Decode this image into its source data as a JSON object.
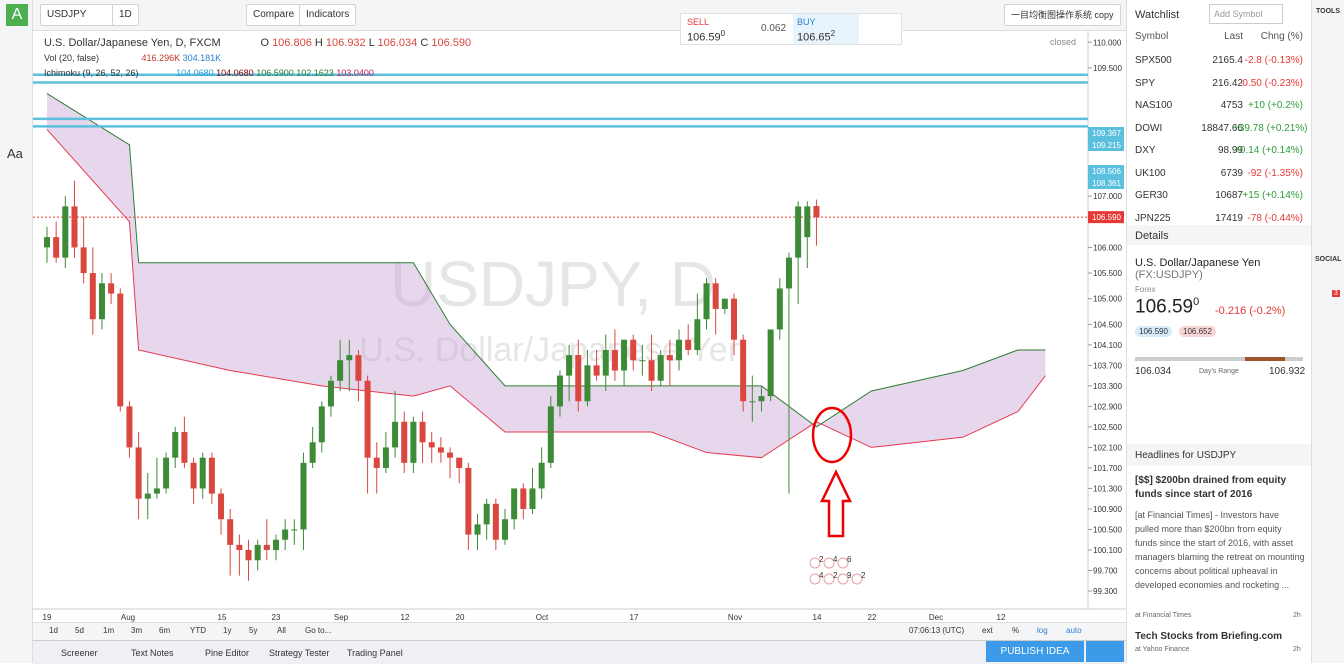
{
  "toolbar": {
    "symbol": "USDJPY",
    "interval": "1D",
    "compare": "Compare",
    "indicators": "Indicators",
    "layout_name": "一目均衡图操作系统 copy"
  },
  "trade": {
    "sell_label": "SELL",
    "sell_price": "106.59",
    "sell_sup": "0",
    "spread": "0.062",
    "buy_label": "BUY",
    "buy_price": "106.65",
    "buy_sup": "2"
  },
  "legend": {
    "title": "U.S. Dollar/Japanese Yen, D, FXCM",
    "o_label": "O",
    "o": "106.806",
    "h_label": "H",
    "h": "106.932",
    "l_label": "L",
    "l": "106.034",
    "c_label": "C",
    "c": "106.590",
    "vol_title": "Vol (20, false)",
    "vol_1": "416.296K",
    "vol_2": "304.181K",
    "ichi_title": "Ichimoku (9, 26, 52, 26)",
    "ichi_values": [
      "104.0680",
      "104.0680",
      "106.5900",
      "102.1623",
      "103.0400"
    ],
    "status": "closed"
  },
  "watermark": {
    "symbol": "USDJPY, D",
    "name": "U.S. Dollar/Japanese Yen"
  },
  "price_axis": {
    "ylim": [
      98.93,
      110.2
    ],
    "ticks": [
      {
        "value": 110,
        "label": "110.000"
      },
      {
        "value": 109.5,
        "label": "109.500"
      },
      {
        "value": 107,
        "label": "107.000"
      },
      {
        "value": 106,
        "label": "106.000"
      },
      {
        "value": 105.5,
        "label": "105.500"
      },
      {
        "value": 105,
        "label": "105.000"
      },
      {
        "value": 104.5,
        "label": "104.500"
      },
      {
        "value": 104.1,
        "label": "104.100"
      },
      {
        "value": 103.7,
        "label": "103.700"
      },
      {
        "value": 103.3,
        "label": "103.300"
      },
      {
        "value": 102.9,
        "label": "102.900"
      },
      {
        "value": 102.5,
        "label": "102.500"
      },
      {
        "value": 102.1,
        "label": "102.100"
      },
      {
        "value": 101.7,
        "label": "101.700"
      },
      {
        "value": 101.3,
        "label": "101.300"
      },
      {
        "value": 100.9,
        "label": "100.900"
      },
      {
        "value": 100.5,
        "label": "100.500"
      },
      {
        "value": 100.1,
        "label": "100.100"
      },
      {
        "value": 99.7,
        "label": "99.700"
      },
      {
        "value": 99.3,
        "label": "99.300"
      }
    ],
    "levels": [
      {
        "value": 109.367,
        "label": "109.367"
      },
      {
        "value": 109.215,
        "label": "109.215"
      },
      {
        "value": 108.506,
        "label": "108.506"
      },
      {
        "value": 108.361,
        "label": "108.361"
      }
    ],
    "last_price": {
      "value": 106.59,
      "label": "106.590"
    }
  },
  "date_axis": [
    19,
    "Aug",
    15,
    23,
    "Sep",
    12,
    20,
    "Oct",
    17,
    "Nov",
    14,
    22,
    "Dec",
    12
  ],
  "candles": [
    [
      106.0,
      106.4,
      105.7,
      106.2
    ],
    [
      106.2,
      106.5,
      105.7,
      105.8
    ],
    [
      105.8,
      107.0,
      105.6,
      106.8
    ],
    [
      106.8,
      107.3,
      105.8,
      106.0
    ],
    [
      106.0,
      106.6,
      105.3,
      105.5
    ],
    [
      105.5,
      106.0,
      104.3,
      104.6
    ],
    [
      104.6,
      105.5,
      104.4,
      105.3
    ],
    [
      105.3,
      105.5,
      104.9,
      105.1
    ],
    [
      105.1,
      105.2,
      102.8,
      102.9
    ],
    [
      102.9,
      103.0,
      101.9,
      102.1
    ],
    [
      102.1,
      102.4,
      100.7,
      101.1
    ],
    [
      101.1,
      101.6,
      100.7,
      101.2
    ],
    [
      101.2,
      101.9,
      101.1,
      101.3
    ],
    [
      101.3,
      102.0,
      101.2,
      101.9
    ],
    [
      101.9,
      102.5,
      101.7,
      102.4
    ],
    [
      102.4,
      102.7,
      101.7,
      101.8
    ],
    [
      101.8,
      101.9,
      101.0,
      101.3
    ],
    [
      101.3,
      102.0,
      101.1,
      101.9
    ],
    [
      101.9,
      102.0,
      101.0,
      101.2
    ],
    [
      101.2,
      101.3,
      100.4,
      100.7
    ],
    [
      100.7,
      100.9,
      99.6,
      100.2
    ],
    [
      100.2,
      100.4,
      99.6,
      100.1
    ],
    [
      100.1,
      100.3,
      99.5,
      99.9
    ],
    [
      99.9,
      100.3,
      99.7,
      100.2
    ],
    [
      100.2,
      100.7,
      99.9,
      100.1
    ],
    [
      100.1,
      100.4,
      99.9,
      100.3
    ],
    [
      100.3,
      100.7,
      100.1,
      100.5
    ],
    [
      100.5,
      100.7,
      100.2,
      100.5
    ],
    [
      100.5,
      102.0,
      100.1,
      101.8
    ],
    [
      101.8,
      102.5,
      101.7,
      102.2
    ],
    [
      102.2,
      103.0,
      102.0,
      102.9
    ],
    [
      102.9,
      103.5,
      102.7,
      103.4
    ],
    [
      103.4,
      104.2,
      103.2,
      103.8
    ],
    [
      103.8,
      104.2,
      103.2,
      103.9
    ],
    [
      103.9,
      104.0,
      103.0,
      103.4
    ],
    [
      103.4,
      103.5,
      101.2,
      101.9
    ],
    [
      101.9,
      102.2,
      101.2,
      101.7
    ],
    [
      101.7,
      102.4,
      101.6,
      102.1
    ],
    [
      102.1,
      103.2,
      101.9,
      102.6
    ],
    [
      102.6,
      102.8,
      101.6,
      101.8
    ],
    [
      101.8,
      102.7,
      101.6,
      102.6
    ],
    [
      102.6,
      102.8,
      101.8,
      102.2
    ],
    [
      102.2,
      102.4,
      101.8,
      102.1
    ],
    [
      102.1,
      102.3,
      101.8,
      102.0
    ],
    [
      102.0,
      102.1,
      101.5,
      101.9
    ],
    [
      101.9,
      101.9,
      101.4,
      101.7
    ],
    [
      101.7,
      101.8,
      100.1,
      100.4
    ],
    [
      100.4,
      100.8,
      100.1,
      100.6
    ],
    [
      100.6,
      101.1,
      100.3,
      101.0
    ],
    [
      101.0,
      101.1,
      100.1,
      100.3
    ],
    [
      100.3,
      100.9,
      100.2,
      100.7
    ],
    [
      100.7,
      101.3,
      100.5,
      101.3
    ],
    [
      101.3,
      101.4,
      100.7,
      100.9
    ],
    [
      100.9,
      101.7,
      100.8,
      101.3
    ],
    [
      101.3,
      102.1,
      101.1,
      101.8
    ],
    [
      101.8,
      103.1,
      101.7,
      102.9
    ],
    [
      102.9,
      103.6,
      102.7,
      103.5
    ],
    [
      103.5,
      104.1,
      103.0,
      103.9
    ],
    [
      103.9,
      104.2,
      102.8,
      103.0
    ],
    [
      103.0,
      104.0,
      102.9,
      103.7
    ],
    [
      103.7,
      104.0,
      103.4,
      103.5
    ],
    [
      103.5,
      104.3,
      103.2,
      104.0
    ],
    [
      104.0,
      104.4,
      103.4,
      103.6
    ],
    [
      103.6,
      104.2,
      103.3,
      104.2
    ],
    [
      104.2,
      104.3,
      103.6,
      103.8
    ],
    [
      103.8,
      104.1,
      103.5,
      103.8
    ],
    [
      103.8,
      104.3,
      103.2,
      103.4
    ],
    [
      103.4,
      104.0,
      103.3,
      103.9
    ],
    [
      103.9,
      104.2,
      103.3,
      103.8
    ],
    [
      103.8,
      104.4,
      103.6,
      104.2
    ],
    [
      104.2,
      104.5,
      103.9,
      104.0
    ],
    [
      104.0,
      105.1,
      103.9,
      104.6
    ],
    [
      104.6,
      105.4,
      104.4,
      105.3
    ],
    [
      105.3,
      105.4,
      104.3,
      104.8
    ],
    [
      104.8,
      105.0,
      104.7,
      105.0
    ],
    [
      105.0,
      105.1,
      103.9,
      104.2
    ],
    [
      104.2,
      104.3,
      102.8,
      103.0
    ],
    [
      103.0,
      103.5,
      102.6,
      103.0
    ],
    [
      103.0,
      103.3,
      102.8,
      103.1
    ],
    [
      103.1,
      104.4,
      103.0,
      104.4
    ],
    [
      104.4,
      105.4,
      104.2,
      105.2
    ],
    [
      105.2,
      105.9,
      101.2,
      105.8
    ],
    [
      105.8,
      106.9,
      104.9,
      106.8
    ],
    [
      106.2,
      106.9,
      105.6,
      106.8
    ],
    [
      106.806,
      106.932,
      106.034,
      106.59
    ]
  ],
  "cloud": {
    "idx": [
      0,
      9,
      10,
      20,
      30,
      40,
      44,
      50,
      60,
      66,
      72,
      78,
      84,
      90,
      100,
      106,
      109
    ],
    "top": [
      109.0,
      108.0,
      105.7,
      105.7,
      105.7,
      105.7,
      104.5,
      103.3,
      103.3,
      103.3,
      103.3,
      103.3,
      102.5,
      103.2,
      103.6,
      104.0,
      104.0
    ],
    "bottom": [
      108.3,
      106.5,
      104.0,
      103.6,
      103.3,
      103.1,
      103.3,
      102.4,
      102.4,
      102.4,
      102.0,
      101.9,
      102.6,
      102.1,
      102.3,
      102.8,
      103.5
    ]
  },
  "events": [
    2,
    4,
    6,
    4,
    2,
    9,
    2
  ],
  "range_bar": {
    "buttons": [
      "1d",
      "5d",
      "1m",
      "3m",
      "6m",
      "YTD",
      "1y",
      "5y",
      "All",
      "Go to..."
    ],
    "time": "07:06:13 (UTC)",
    "ext": "ext",
    "percent": "%",
    "log": "log",
    "auto": "auto"
  },
  "bottom_tabs": [
    "Screener",
    "Text Notes",
    "Pine Editor",
    "Strategy Tester",
    "Trading Panel"
  ],
  "publish": "PUBLISH IDEA",
  "sidebar": {
    "text_tool": "Aa",
    "logo": "A"
  },
  "watchlist": {
    "title": "Watchlist",
    "add": "Add Symbol",
    "columns": [
      "Symbol",
      "Last",
      "Chng (%)"
    ],
    "rows": [
      [
        "SPX500",
        2165.4,
        "-2.8 (-0.13%)"
      ],
      [
        "SPY",
        216.42,
        "-0.50 (-0.23%)"
      ],
      [
        "NAS100",
        4753,
        "+10 (+0.2%)"
      ],
      [
        "DOWI",
        18847.66,
        "+39.78 (+0.21%)"
      ],
      [
        "DXY",
        98.99,
        "+0.14 (+0.14%)"
      ],
      [
        "UK100",
        6739,
        "-92 (-1.35%)"
      ],
      [
        "GER30",
        10687,
        "+15 (+0.14%)"
      ],
      [
        "JPN225",
        17419,
        "-78 (-0.44%)"
      ]
    ]
  },
  "details": {
    "title": "Details",
    "name": "U.S. Dollar/Japanese Yen",
    "code": "(FX:USDJPY)",
    "type": "Forex",
    "price": "106.59",
    "price_sup": "0",
    "change": "-0.216 (-0.2%)",
    "bid": "106.590",
    "ask": "106.652",
    "low": "106.034",
    "range_label": "Day's Range",
    "high": "106.932"
  },
  "headlines": {
    "title": "Headlines for USDJPY",
    "items": [
      {
        "title": "[$$] $200bn drained from equity funds since start of 2016",
        "body": "[at Financial Times] - Investors have pulled more than $200bn from equity funds since the start of 2016, with asset managers blaming the retreat on mounting concerns about political upheaval in developed economies and rocketing ...",
        "source": "at Financial Times",
        "age": "2h"
      },
      {
        "title": "Tech Stocks from Briefing.com",
        "source": "at Yahoo Finance",
        "age": "2h"
      }
    ]
  },
  "far_right": {
    "tools": "TOOLS",
    "social": "SOCIAL",
    "badge": 3
  }
}
